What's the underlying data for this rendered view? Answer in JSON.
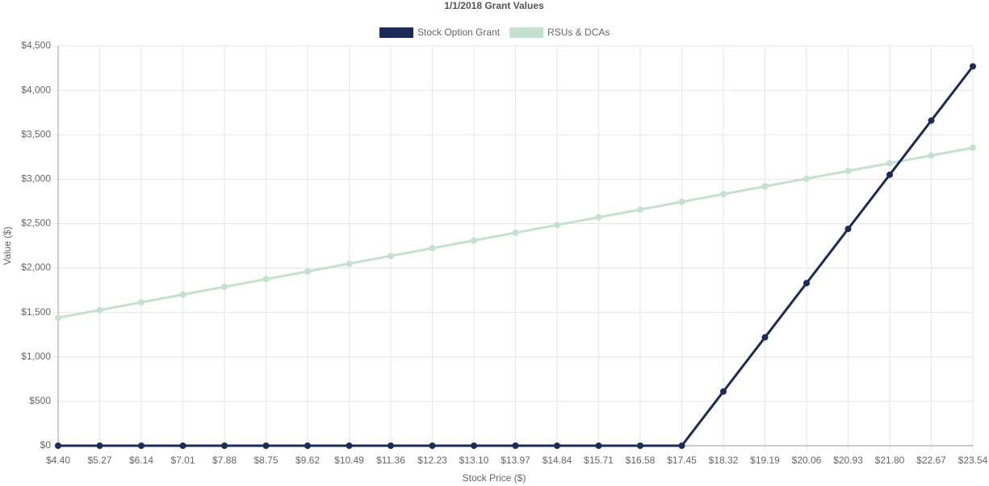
{
  "chart_data": {
    "type": "line",
    "title": "1/1/2018 Grant Values",
    "x_label": "Stock Price ($)",
    "y_label": "Value ($)",
    "categories": [
      "$4.40",
      "$5.27",
      "$6.14",
      "$7.01",
      "$7.88",
      "$8.75",
      "$9.62",
      "$10.49",
      "$11.36",
      "$12.23",
      "$13.10",
      "$13.97",
      "$14.84",
      "$15.71",
      "$16.58",
      "$17.45",
      "$18.32",
      "$19.19",
      "$20.06",
      "$20.93",
      "$21.80",
      "$22.67",
      "$23.54"
    ],
    "series": [
      {
        "name": "Stock Option Grant",
        "color": "#1c2b58",
        "values": [
          0,
          0,
          0,
          0,
          0,
          0,
          0,
          0,
          0,
          0,
          0,
          0,
          0,
          0,
          0,
          0,
          610,
          1220,
          1830,
          2440,
          3050,
          3660,
          4270
        ]
      },
      {
        "name": "RSUs & DCAs",
        "color": "#c5e0cf",
        "values": [
          1440,
          1527,
          1614,
          1701,
          1788,
          1875,
          1962,
          2049,
          2136,
          2223,
          2310,
          2397,
          2484,
          2571,
          2658,
          2745,
          2832,
          2919,
          3006,
          3093,
          3180,
          3267,
          3354
        ]
      }
    ],
    "ylim": [
      0,
      4500
    ],
    "yticks": [
      {
        "value": 0,
        "label": "$0"
      },
      {
        "value": 500,
        "label": "$500"
      },
      {
        "value": 1000,
        "label": "$1,000"
      },
      {
        "value": 1500,
        "label": "$1,500"
      },
      {
        "value": 2000,
        "label": "$2,000"
      },
      {
        "value": 2500,
        "label": "$2,500"
      },
      {
        "value": 3000,
        "label": "$3,000"
      },
      {
        "value": 3500,
        "label": "$3,500"
      },
      {
        "value": 4000,
        "label": "$4,000"
      },
      {
        "value": 4500,
        "label": "$4,500"
      }
    ],
    "grid": true,
    "legend": "top"
  }
}
